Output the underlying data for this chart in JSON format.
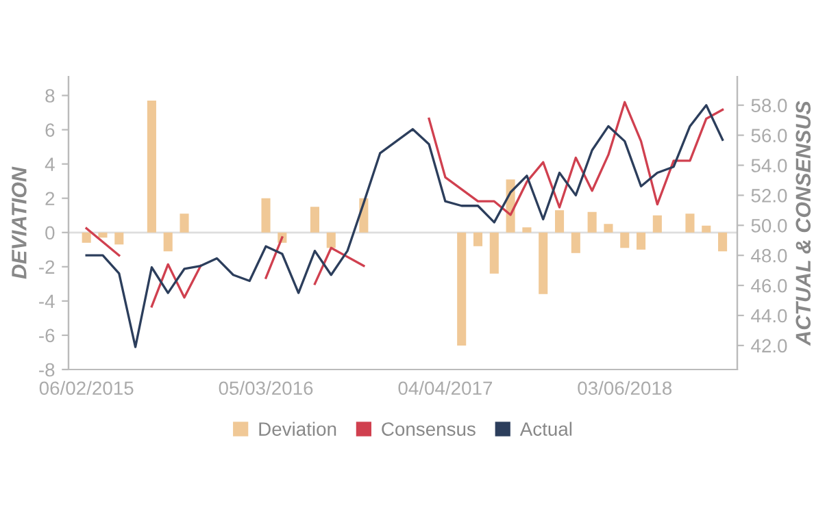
{
  "chart_data": {
    "type": "bar",
    "categories": [
      "06/02/2015",
      null,
      null,
      null,
      null,
      null,
      null,
      null,
      null,
      null,
      null,
      "05/03/2016",
      null,
      null,
      null,
      null,
      null,
      null,
      null,
      null,
      null,
      null,
      "04/04/2017",
      null,
      null,
      null,
      null,
      null,
      null,
      null,
      null,
      null,
      null,
      "03/06/2018",
      null,
      null,
      null,
      null,
      null,
      null
    ],
    "ylabel": "DEVIATION",
    "y2label": "ACTUAL & CONSENSUS",
    "ylim": [
      -8,
      9.1
    ],
    "yticks": [
      -8,
      -6,
      -4,
      -2,
      0,
      2,
      4,
      6,
      8
    ],
    "y2lim": [
      40.4,
      59.9
    ],
    "y2ticks": [
      {
        "value": 42,
        "label": "42.0"
      },
      {
        "value": 44,
        "label": "44.0"
      },
      {
        "value": 46,
        "label": "46.0"
      },
      {
        "value": 48,
        "label": "48.0"
      },
      {
        "value": 50,
        "label": "50.0"
      },
      {
        "value": 52,
        "label": "52.0"
      },
      {
        "value": 54,
        "label": "54.0"
      },
      {
        "value": 56,
        "label": "56.0"
      },
      {
        "value": 58,
        "label": "58.0"
      }
    ],
    "ref_lines": [
      {
        "axis": "y",
        "value": 0,
        "color": "#dddddd"
      }
    ],
    "grid": false,
    "legend": "bottom",
    "series": [
      {
        "name": "Deviation",
        "color": "#f0c896",
        "values": [
          -0.6,
          -0.3,
          -0.7,
          null,
          7.7,
          -1.1,
          1.1,
          null,
          null,
          null,
          null,
          2.0,
          -0.6,
          null,
          1.5,
          -0.9,
          null,
          2.0,
          null,
          null,
          null,
          null,
          null,
          -6.6,
          -0.8,
          -2.4,
          3.1,
          0.3,
          -3.6,
          1.3,
          -1.2,
          1.2,
          0.5,
          -0.9,
          -1.0,
          1.0,
          null,
          1.1,
          0.4,
          -1.1
        ]
      },
      {
        "name": "Consensus",
        "type": "line",
        "axis": "y2",
        "color": "#d0404f",
        "values": [
          49.8,
          48.9,
          48.0,
          null,
          44.6,
          47.4,
          45.2,
          47.3,
          null,
          null,
          null,
          46.5,
          49.2,
          null,
          46.1,
          48.5,
          47.9,
          47.3,
          null,
          null,
          null,
          57.1,
          53.2,
          52.4,
          51.6,
          51.6,
          50.7,
          52.9,
          54.2,
          51.2,
          54.5,
          52.3,
          54.7,
          58.2,
          55.6,
          51.4,
          54.3,
          54.3,
          57.1,
          57.7
        ]
      },
      {
        "name": "Actual",
        "type": "line",
        "axis": "y2",
        "color": "#2c3e5c",
        "values": [
          48.0,
          48.0,
          46.8,
          41.9,
          47.2,
          45.5,
          47.1,
          47.3,
          47.8,
          46.7,
          46.3,
          48.6,
          48.1,
          45.5,
          48.3,
          46.7,
          48.3,
          51.5,
          54.8,
          55.6,
          56.4,
          55.4,
          51.6,
          51.3,
          51.3,
          50.2,
          52.2,
          53.3,
          50.4,
          53.5,
          52.0,
          55.0,
          56.6,
          55.6,
          52.6,
          53.5,
          53.9,
          56.6,
          58.0,
          55.7
        ]
      }
    ]
  }
}
